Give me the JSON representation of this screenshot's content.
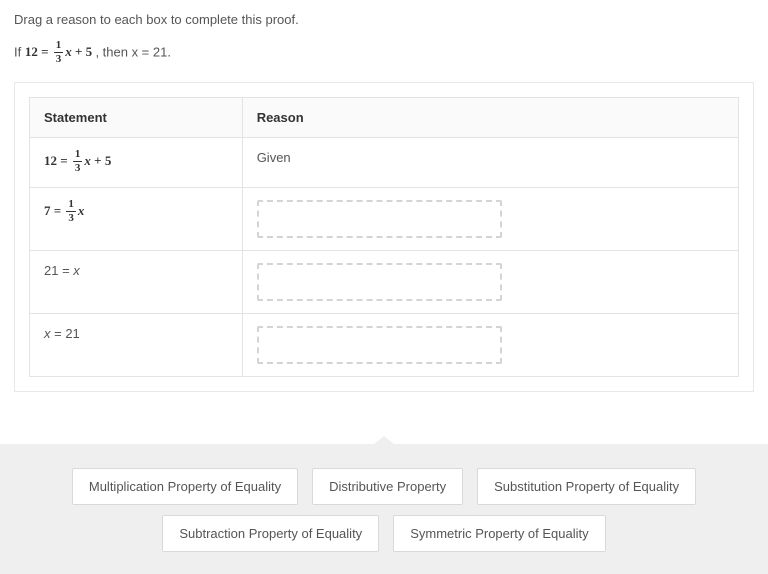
{
  "instruction": "Drag a reason to each box to complete this proof.",
  "hypothesis_prefix": "If ",
  "hypothesis_math_lhs": "12",
  "hypothesis_eq": " = ",
  "hypothesis_frac_num": "1",
  "hypothesis_frac_den": "3",
  "hypothesis_var": "x",
  "hypothesis_plus": " + 5",
  "hypothesis_suffix": " , then x = 21.",
  "headers": {
    "statement": "Statement",
    "reason": "Reason"
  },
  "rows": {
    "r1": {
      "lhs": "12",
      "eq": " = ",
      "frac_num": "1",
      "frac_den": "3",
      "var": "x",
      "tail": " + 5",
      "reason": "Given"
    },
    "r2": {
      "lhs": "7",
      "eq": " = ",
      "frac_num": "1",
      "frac_den": "3",
      "var": "x"
    },
    "r3": {
      "text": "21 = x"
    },
    "r4": {
      "text": "x = 21"
    }
  },
  "chips": {
    "c1": "Multiplication Property of Equality",
    "c2": "Distributive Property",
    "c3": "Substitution Property of Equality",
    "c4": "Subtraction Property of Equality",
    "c5": "Symmetric Property of Equality"
  },
  "colors": {
    "text": "#555555",
    "heading": "#333333",
    "border": "#e3e3e3",
    "panel_border": "#e8e8e8",
    "dashed": "#d4d4d4",
    "tray_bg": "#efefef",
    "chip_bg": "#ffffff",
    "chip_border": "#d9d9d9"
  }
}
